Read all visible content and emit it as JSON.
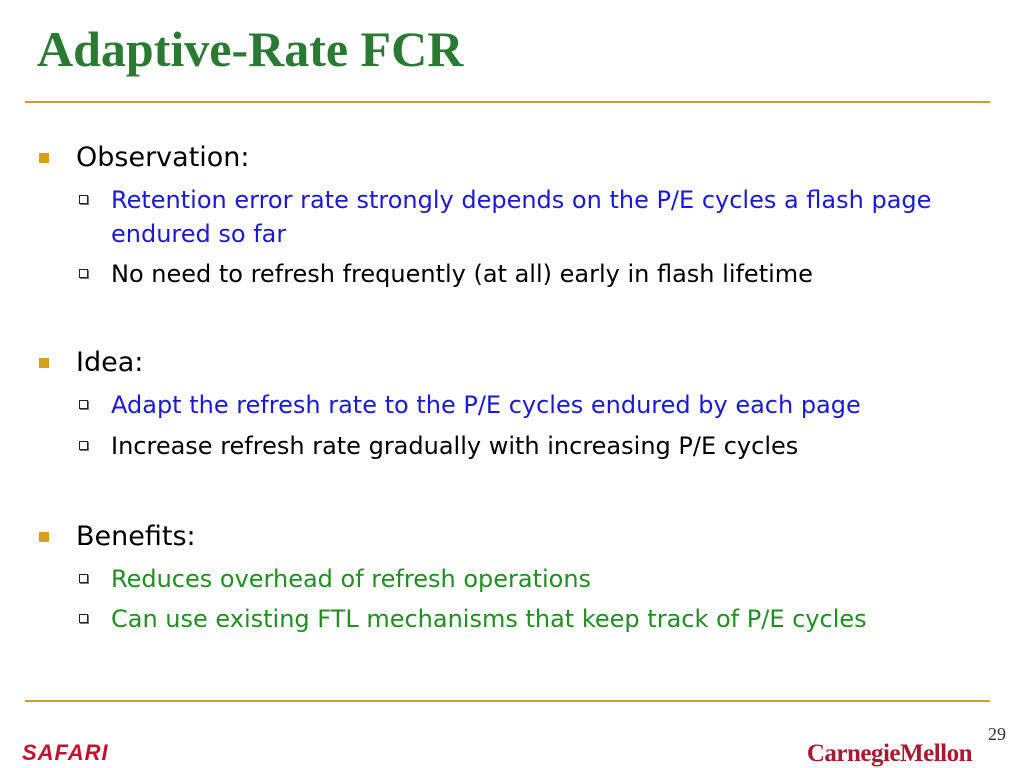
{
  "title": "Adaptive-Rate FCR",
  "sections": [
    {
      "heading": "Observation:",
      "items": [
        {
          "text": "Retention error rate strongly depends on the P/E cycles a flash page endured so far",
          "color": "#1a1ad6"
        },
        {
          "text": "No need to refresh frequently (at all) early in flash lifetime",
          "color": "#000000"
        }
      ]
    },
    {
      "heading": "Idea:",
      "items": [
        {
          "text": "Adapt the refresh rate to the P/E cycles endured by each page",
          "color": "#1a1ad6"
        },
        {
          "text": "Increase refresh rate gradually with increasing P/E cycles",
          "color": "#000000"
        }
      ]
    },
    {
      "heading": "Benefits:",
      "items": [
        {
          "text": "Reduces overhead of refresh operations",
          "color": "#1f8f1f"
        },
        {
          "text": "Can use existing FTL mechanisms that keep track of P/E cycles",
          "color": "#1f8f1f"
        }
      ]
    }
  ],
  "footer": {
    "page_number": "29",
    "left_logo": "SAFARI",
    "right_logo": "CarnegieMellon"
  },
  "colors": {
    "title": "#2b7a33",
    "rule": "#c9a227",
    "bullet_marker": "#d4a017"
  }
}
